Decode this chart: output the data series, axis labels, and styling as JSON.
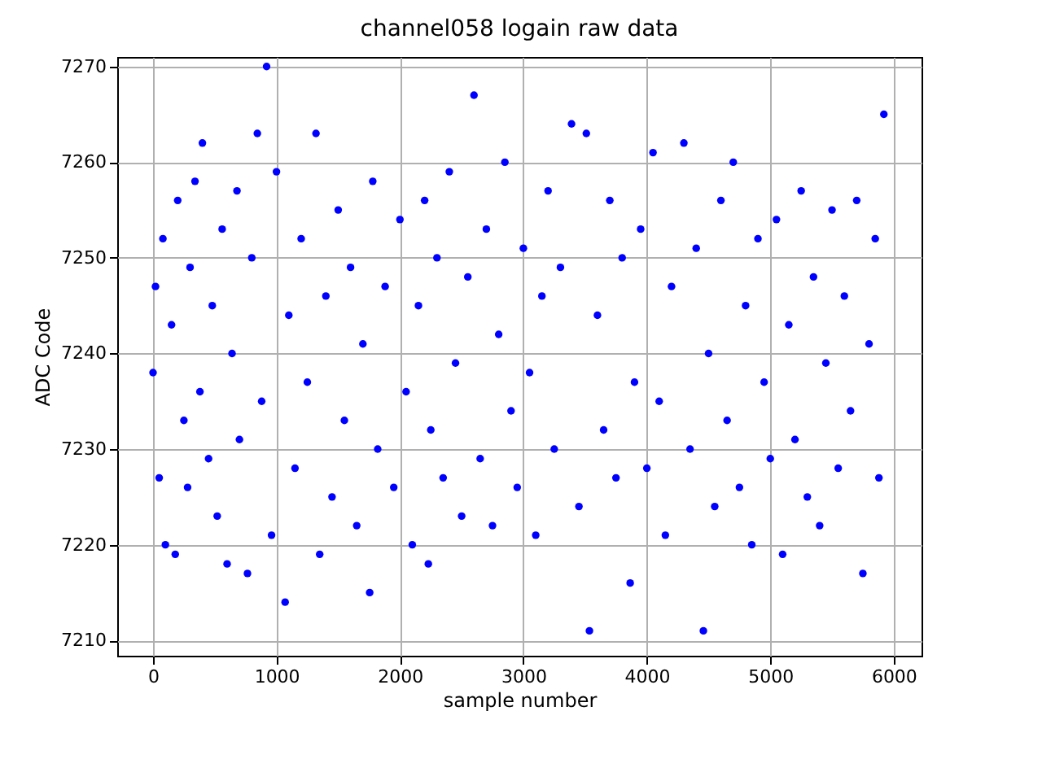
{
  "chart_data": {
    "type": "scatter",
    "title": "channel058 logain raw data",
    "xlabel": "sample number",
    "ylabel": "ADC Code",
    "x": [
      0,
      20,
      50,
      80,
      100,
      150,
      180,
      200,
      250,
      280,
      300,
      340,
      380,
      400,
      450,
      480,
      520,
      560,
      600,
      640,
      680,
      700,
      765,
      800,
      845,
      880,
      920,
      960,
      1000,
      1070,
      1100,
      1150,
      1200,
      1250,
      1320,
      1350,
      1400,
      1450,
      1500,
      1550,
      1600,
      1650,
      1700,
      1755,
      1780,
      1820,
      1880,
      1950,
      2000,
      2050,
      2100,
      2150,
      2200,
      2230,
      2250,
      2300,
      2350,
      2400,
      2450,
      2500,
      2550,
      2600,
      2650,
      2700,
      2750,
      2800,
      2850,
      2900,
      2950,
      3000,
      3050,
      3100,
      3150,
      3200,
      3250,
      3300,
      3390,
      3450,
      3510,
      3535,
      3600,
      3650,
      3700,
      3750,
      3800,
      3865,
      3900,
      3950,
      4000,
      4050,
      4100,
      4150,
      4200,
      4300,
      4350,
      4400,
      4458,
      4500,
      4550,
      4600,
      4650,
      4700,
      4750,
      4800,
      4850,
      4900,
      4950,
      5000,
      5050,
      5100,
      5150,
      5200,
      5250,
      5300,
      5350,
      5400,
      5450,
      5500,
      5550,
      5600,
      5650,
      5700,
      5750,
      5800,
      5850,
      5880,
      5920
    ],
    "series": [
      {
        "color": "#0000ff",
        "values": [
          7238,
          7247,
          7227,
          7252,
          7220,
          7243,
          7219,
          7256,
          7233,
          7226,
          7249,
          7258,
          7236,
          7262,
          7229,
          7245,
          7223,
          7253,
          7218,
          7240,
          7257,
          7231,
          7217,
          7250,
          7263,
          7235,
          7270,
          7221,
          7259,
          7214,
          7244,
          7228,
          7252,
          7237,
          7263,
          7219,
          7246,
          7225,
          7255,
          7233,
          7249,
          7222,
          7241,
          7215,
          7258,
          7230,
          7247,
          7226,
          7254,
          7236,
          7220,
          7245,
          7256,
          7218,
          7232,
          7250,
          7227,
          7259,
          7239,
          7223,
          7248,
          7267,
          7229,
          7253,
          7222,
          7242,
          7260,
          7234,
          7226,
          7251,
          7238,
          7221,
          7246,
          7257,
          7230,
          7249,
          7264,
          7224,
          7263,
          7211,
          7244,
          7232,
          7256,
          7227,
          7250,
          7216,
          7237,
          7253,
          7228,
          7261,
          7235,
          7221,
          7247,
          7262,
          7230,
          7251,
          7211,
          7240,
          7224,
          7256,
          7233,
          7260,
          7226,
          7245,
          7220,
          7252,
          7237,
          7229,
          7254,
          7219,
          7243,
          7231,
          7257,
          7225,
          7248,
          7222,
          7239,
          7255,
          7228,
          7246,
          7234,
          7256,
          7217,
          7241,
          7252,
          7227,
          7265
        ]
      }
    ],
    "xlim": [
      -290,
      6225
    ],
    "ylim": [
      7208.4,
      7271.0
    ],
    "xticks": [
      0,
      1000,
      2000,
      3000,
      4000,
      5000,
      6000
    ],
    "yticks": [
      7210,
      7220,
      7230,
      7240,
      7250,
      7260,
      7270
    ],
    "grid": true,
    "marker": "circle"
  }
}
